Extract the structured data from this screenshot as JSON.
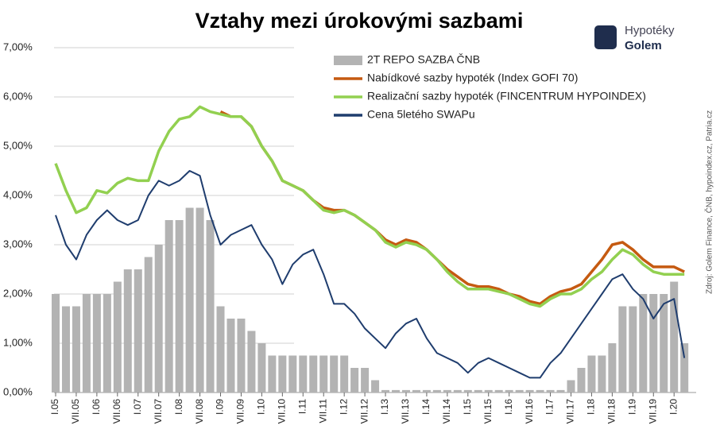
{
  "chart_data": {
    "type": "bar-line",
    "title": "Vztahy mezi úrokovými sazbami",
    "logo": {
      "line1": "Hypotéky",
      "line2": "Golem"
    },
    "source": "Zdroj: Golem Finance, ČNB, hypoindex.cz, Patria.cz",
    "categories": [
      "I.05",
      null,
      "VII.05",
      null,
      "I.06",
      null,
      "VII.06",
      null,
      "I.07",
      null,
      "VII.07",
      null,
      "I.08",
      null,
      "VII.08",
      null,
      "I.09",
      null,
      "VII.09",
      null,
      "I.10",
      null,
      "VII.10",
      null,
      "I.11",
      null,
      "VII.11",
      null,
      "I.12",
      null,
      "VII.12",
      null,
      "I.13",
      null,
      "VII.13",
      null,
      "I.14",
      null,
      "VII.14",
      null,
      "I.15",
      null,
      "VII.15",
      null,
      "I.16",
      null,
      "VII.16",
      null,
      "I.17",
      null,
      "VII.17",
      null,
      "I.18",
      null,
      "VII.18",
      null,
      "I.19",
      null,
      "VII.19",
      null,
      "I.20",
      null
    ],
    "series": [
      {
        "name": "2T REPO SAZBA ČNB",
        "kind": "bar",
        "color": "#b3b3b3",
        "values": [
          2.0,
          1.75,
          1.75,
          2.0,
          2.0,
          2.0,
          2.25,
          2.5,
          2.5,
          2.75,
          3.0,
          3.5,
          3.5,
          3.75,
          3.75,
          3.5,
          1.75,
          1.5,
          1.5,
          1.25,
          1.0,
          0.75,
          0.75,
          0.75,
          0.75,
          0.75,
          0.75,
          0.75,
          0.75,
          0.5,
          0.5,
          0.25,
          0.05,
          0.05,
          0.05,
          0.05,
          0.05,
          0.05,
          0.05,
          0.05,
          0.05,
          0.05,
          0.05,
          0.05,
          0.05,
          0.05,
          0.05,
          0.05,
          0.05,
          0.05,
          0.25,
          0.5,
          0.75,
          0.75,
          1.0,
          1.75,
          1.75,
          2.0,
          2.0,
          2.0,
          2.25,
          1.0
        ]
      },
      {
        "name": "Nabídkové sazby hypoték (Index GOFI 70)",
        "kind": "line",
        "color": "#c55a11",
        "values": [
          null,
          null,
          null,
          null,
          null,
          null,
          null,
          null,
          null,
          null,
          null,
          null,
          null,
          null,
          null,
          null,
          5.7,
          5.6,
          5.6,
          5.4,
          5.0,
          4.7,
          4.3,
          4.2,
          4.1,
          3.9,
          3.75,
          3.7,
          3.7,
          3.6,
          3.45,
          3.3,
          3.1,
          3.0,
          3.1,
          3.05,
          2.9,
          2.7,
          2.5,
          2.35,
          2.2,
          2.15,
          2.15,
          2.1,
          2.0,
          1.95,
          1.85,
          1.8,
          1.95,
          2.05,
          2.1,
          2.2,
          2.45,
          2.7,
          3.0,
          3.05,
          2.9,
          2.7,
          2.55,
          2.55,
          2.55,
          2.45
        ]
      },
      {
        "name": "Realizační sazby hypoték (FINCENTRUM HYPOINDEX)",
        "kind": "line",
        "color": "#92d050",
        "values": [
          4.65,
          4.1,
          3.65,
          3.75,
          4.1,
          4.05,
          4.25,
          4.35,
          4.3,
          4.3,
          4.9,
          5.3,
          5.55,
          5.6,
          5.8,
          5.7,
          5.65,
          5.6,
          5.6,
          5.4,
          5.0,
          4.7,
          4.3,
          4.2,
          4.1,
          3.9,
          3.7,
          3.65,
          3.7,
          3.6,
          3.45,
          3.3,
          3.05,
          2.95,
          3.05,
          3.0,
          2.9,
          2.7,
          2.45,
          2.25,
          2.1,
          2.1,
          2.1,
          2.05,
          2.0,
          1.9,
          1.8,
          1.75,
          1.9,
          2.0,
          2.0,
          2.1,
          2.3,
          2.45,
          2.7,
          2.9,
          2.8,
          2.6,
          2.45,
          2.4,
          2.4,
          2.4
        ]
      },
      {
        "name": "Cena 5letého SWAPu",
        "kind": "line",
        "color": "#1f3d6e",
        "values": [
          3.6,
          3.0,
          2.7,
          3.2,
          3.5,
          3.7,
          3.5,
          3.4,
          3.5,
          4.0,
          4.3,
          4.2,
          4.3,
          4.5,
          4.4,
          3.6,
          3.0,
          3.2,
          3.3,
          3.4,
          3.0,
          2.7,
          2.2,
          2.6,
          2.8,
          2.9,
          2.4,
          1.8,
          1.8,
          1.6,
          1.3,
          1.1,
          0.9,
          1.2,
          1.4,
          1.5,
          1.1,
          0.8,
          0.7,
          0.6,
          0.4,
          0.6,
          0.7,
          0.6,
          0.5,
          0.4,
          0.3,
          0.3,
          0.6,
          0.8,
          1.1,
          1.4,
          1.7,
          2.0,
          2.3,
          2.4,
          2.1,
          1.9,
          1.5,
          1.8,
          1.9,
          0.7
        ]
      }
    ],
    "ylim": [
      0,
      7
    ],
    "yticks": [
      {
        "value": 0,
        "label": "0,00%"
      },
      {
        "value": 1,
        "label": "1,00%"
      },
      {
        "value": 2,
        "label": "2,00%"
      },
      {
        "value": 3,
        "label": "3,00%"
      },
      {
        "value": 4,
        "label": "4,00%"
      },
      {
        "value": 5,
        "label": "5,00%"
      },
      {
        "value": 6,
        "label": "6,00%"
      },
      {
        "value": 7,
        "label": "7,00%"
      }
    ],
    "grid": true
  }
}
